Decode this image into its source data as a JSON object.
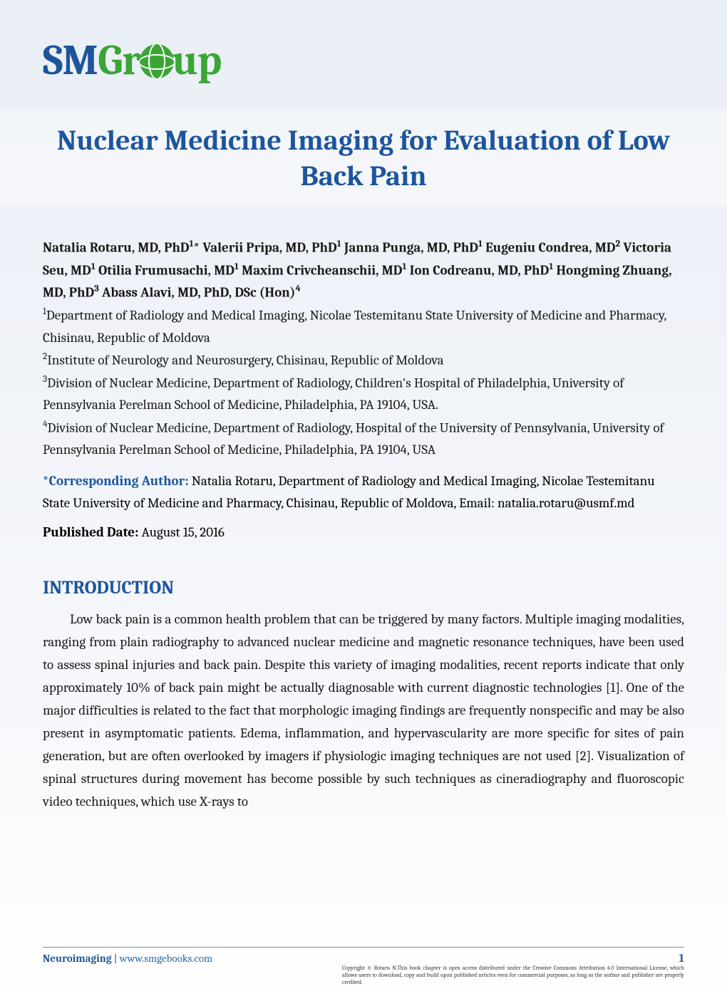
{
  "logo": {
    "sm": "SM",
    "gr": "Gr",
    "up": "up"
  },
  "title": "Nuclear Medicine Imaging for Evaluation of Low Back Pain",
  "authors_html": "Natalia Rotaru, MD, PhD<sup>1</sup>* Valerii Pripa, MD, PhD<sup>1</sup> Janna Punga, MD, PhD<sup>1</sup> Eugeniu Condrea, MD<sup>2</sup> Victoria Seu, MD<sup>1</sup> Otilia Frumusachi, MD<sup>1</sup> Maxim Crivcheanschii, MD<sup>1</sup> Ion Codreanu, MD, PhD<sup>1</sup> Hongming Zhuang, MD, PhD<sup>3</sup> Abass Alavi, MD, PhD, DSc (Hon)<sup>4</sup>",
  "affiliations": [
    "<sup>1</sup>Department of Radiology and Medical Imaging, Nicolae Testemitanu State University of Medicine and Pharmacy, Chisinau, Republic of Moldova",
    "<sup>2</sup>Institute of Neurology and Neurosurgery, Chisinau, Republic of Moldova",
    "<sup>3</sup>Division of Nuclear Medicine, Department of Radiology, Children's Hospital of Philadelphia, University of Pennsylvania Perelman School of Medicine, Philadelphia, PA 19104, USA.",
    "<sup>4</sup>Division of Nuclear Medicine, Department of Radiology, Hospital of the University of Pennsylvania, University of Pennsylvania Perelman School of Medicine, Philadelphia, PA 19104, USA"
  ],
  "corresponding": {
    "label": "*Corresponding Author:",
    "text": " Natalia Rotaru, Department of Radiology and Medical Imaging, Nicolae Testemitanu State University of Medicine and Pharmacy, Chisinau, Republic of Moldova, Email: natalia.rotaru@usmf.md"
  },
  "published": {
    "label": "Published Date: ",
    "value": "August 15, 2016"
  },
  "section_heading": "INTRODUCTION",
  "intro_paragraph": "Low back pain is a common health problem that can be triggered by many factors. Multiple imaging modalities, ranging from plain radiography to advanced nuclear medicine and magnetic resonance techniques, have been used to assess spinal injuries and back pain. Despite this variety of imaging modalities, recent reports indicate that only approximately 10% of back pain might be actually diagnosable with current diagnostic technologies [1]. One of the major difficulties is related to the fact that morphologic imaging findings are frequently nonspecific and may be also present in asymptomatic patients. Edema, inflammation, and hypervascularity are more specific for sites of pain generation, but are often overlooked by imagers if physiologic imaging techniques are not used [2]. Visualization of spinal structures during movement has become possible by such techniques as cineradiography and fluoroscopic video techniques, which use X-rays to",
  "footer": {
    "journal": "Neuroimaging",
    "sep": " | ",
    "url": "www.smgebooks.com",
    "page_number": "1",
    "copyright": "Copyright © Rotaru N.This book chapter is open access distributed under the Creative Commons Attribution 4.0 International License, which allows users to download, copy and build upon published articles even for commercial purposes, as long as the author and publisher are properly credited."
  },
  "colors": {
    "brand_blue": "#1d559b",
    "brand_green": "#3aa535",
    "link_blue": "#2a6fb5",
    "text": "#1a1a1a",
    "bg_top": "#eaeef5"
  }
}
